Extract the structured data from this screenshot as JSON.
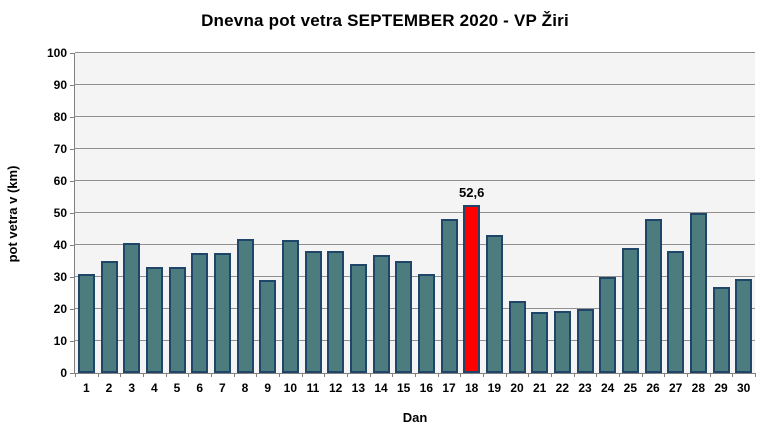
{
  "chart_data": {
    "type": "bar",
    "title": "Dnevna pot vetra SEPTEMBER 2020 - VP Žiri",
    "xlabel": "Dan",
    "ylabel": "pot vetra  v (km)",
    "categories": [
      "1",
      "2",
      "3",
      "4",
      "5",
      "6",
      "7",
      "8",
      "9",
      "10",
      "11",
      "12",
      "13",
      "14",
      "15",
      "16",
      "17",
      "18",
      "19",
      "20",
      "21",
      "22",
      "23",
      "24",
      "25",
      "26",
      "27",
      "28",
      "29",
      "30"
    ],
    "values": [
      31,
      35,
      40.5,
      33,
      33,
      37.5,
      37.5,
      42,
      29,
      41.5,
      38,
      38,
      34,
      37,
      35,
      31,
      48,
      52.6,
      43,
      22.5,
      19,
      19.5,
      20,
      30,
      39,
      48,
      38,
      50,
      27,
      29.5
    ],
    "ylim": [
      0,
      100
    ],
    "ytick_step": 10,
    "grid": "horizontal",
    "legend": "none",
    "highlight": {
      "index": 17,
      "label": "52,6",
      "color": "#FF0000"
    },
    "colors": {
      "bar_fill": "#4C7C7D",
      "bar_border": "#1F4568",
      "gridline": "#909090",
      "axis": "#808080",
      "plot_background": "#F4F4F4",
      "text": "#000000"
    }
  }
}
